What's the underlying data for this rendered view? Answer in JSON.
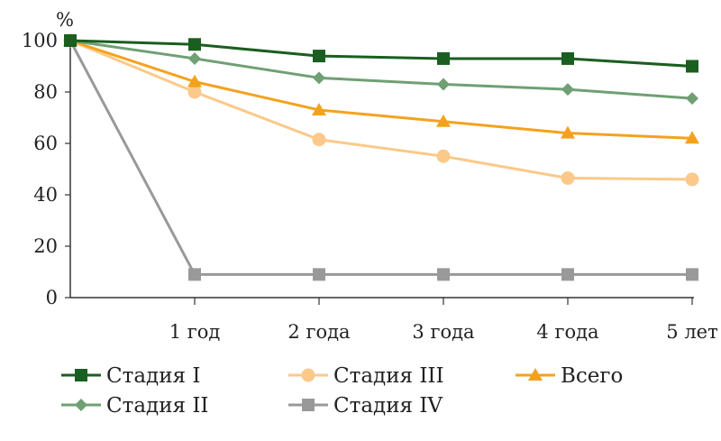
{
  "chart_data": {
    "type": "line",
    "title": "",
    "ylabel": "%",
    "xlabel": "",
    "ylim": [
      0,
      100
    ],
    "yticks": [
      0,
      20,
      40,
      60,
      80,
      100
    ],
    "categories": [
      "",
      "1 год",
      "2 года",
      "3 года",
      "4 года",
      "5 лет"
    ],
    "grid": false,
    "legend_position": "bottom",
    "series": [
      {
        "name": "Стадия I",
        "color": "#1a5e20",
        "marker": "square",
        "values": [
          100,
          98.5,
          94,
          93,
          93,
          90
        ]
      },
      {
        "name": "Стадия II",
        "color": "#6fa074",
        "marker": "diamond",
        "values": [
          100,
          93,
          85.5,
          83,
          81,
          77.5
        ]
      },
      {
        "name": "Стадия III",
        "color": "#fbc98a",
        "marker": "circle",
        "values": [
          100,
          80,
          61.5,
          55,
          46.5,
          46
        ]
      },
      {
        "name": "Стадия IV",
        "color": "#999999",
        "marker": "square",
        "values": [
          100,
          9,
          9,
          9,
          9,
          9
        ]
      },
      {
        "name": "Всего",
        "color": "#f4a21e",
        "marker": "triangle",
        "values": [
          100,
          84,
          73,
          68.5,
          64,
          62
        ]
      }
    ],
    "legend_order": [
      0,
      2,
      4,
      1,
      3
    ]
  }
}
